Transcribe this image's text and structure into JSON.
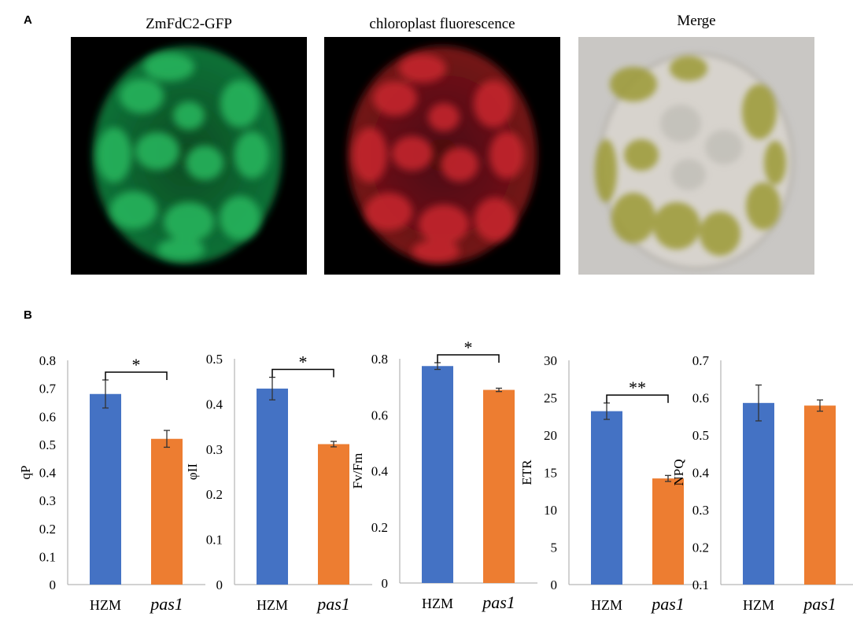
{
  "figure": {
    "panel_a_label": "A",
    "panel_b_label": "B",
    "images": [
      {
        "title": "ZmFdC2-GFP",
        "color": "#1f9a4a",
        "background": "#000000"
      },
      {
        "title": "chloroplast fluorescence",
        "color": "#b8222a",
        "background": "#000000"
      },
      {
        "title": "Merge",
        "color": "#9a9a3a",
        "background": "#c9c7c4"
      }
    ]
  },
  "chart_data": [
    {
      "type": "bar",
      "categories": [
        "HZM",
        "pas1"
      ],
      "values": [
        0.68,
        0.52
      ],
      "errors": [
        0.05,
        0.03
      ],
      "ylabel": "qP",
      "ylim": [
        0,
        0.8
      ],
      "yticks": [
        "0",
        "0.1",
        "0.2",
        "0.3",
        "0.4",
        "0.5",
        "0.6",
        "0.7",
        "0.8"
      ],
      "significance": "*",
      "colors": [
        "#4472c4",
        "#ed7d31"
      ]
    },
    {
      "type": "bar",
      "categories": [
        "HZM",
        "pas1"
      ],
      "values": [
        0.434,
        0.311
      ],
      "errors": [
        0.025,
        0.006
      ],
      "ylabel": "φII",
      "ylim": [
        0,
        0.5
      ],
      "yticks": [
        "0",
        "0.1",
        "0.2",
        "0.3",
        "0.4",
        "0.5"
      ],
      "significance": "*",
      "colors": [
        "#4472c4",
        "#ed7d31"
      ]
    },
    {
      "type": "bar",
      "categories": [
        "HZM",
        "pas1"
      ],
      "values": [
        0.774,
        0.689
      ],
      "errors": [
        0.012,
        0.006
      ],
      "ylabel": "Fv/Fm",
      "ylim": [
        0,
        0.8
      ],
      "yticks": [
        "0",
        "0.2",
        "0.4",
        "0.6",
        "0.8"
      ],
      "significance": "*",
      "colors": [
        "#4472c4",
        "#ed7d31"
      ]
    },
    {
      "type": "bar",
      "categories": [
        "HZM",
        "pas1"
      ],
      "values": [
        23.2,
        14.2
      ],
      "errors": [
        1.1,
        0.4
      ],
      "ylabel": "ETR",
      "ylim": [
        0,
        30
      ],
      "yticks": [
        "0",
        "5",
        "10",
        "15",
        "20",
        "25",
        "30"
      ],
      "significance": "**",
      "colors": [
        "#4472c4",
        "#ed7d31"
      ]
    },
    {
      "type": "bar",
      "categories": [
        "HZM",
        "pas1"
      ],
      "values": [
        0.586,
        0.579
      ],
      "errors": [
        0.048,
        0.015
      ],
      "ylabel": "NPQ",
      "ylim": [
        0.1,
        0.7
      ],
      "yticks": [
        "0.1",
        "0.2",
        "0.3",
        "0.4",
        "0.5",
        "0.6",
        "0.7"
      ],
      "significance": "",
      "colors": [
        "#4472c4",
        "#ed7d31"
      ]
    }
  ]
}
